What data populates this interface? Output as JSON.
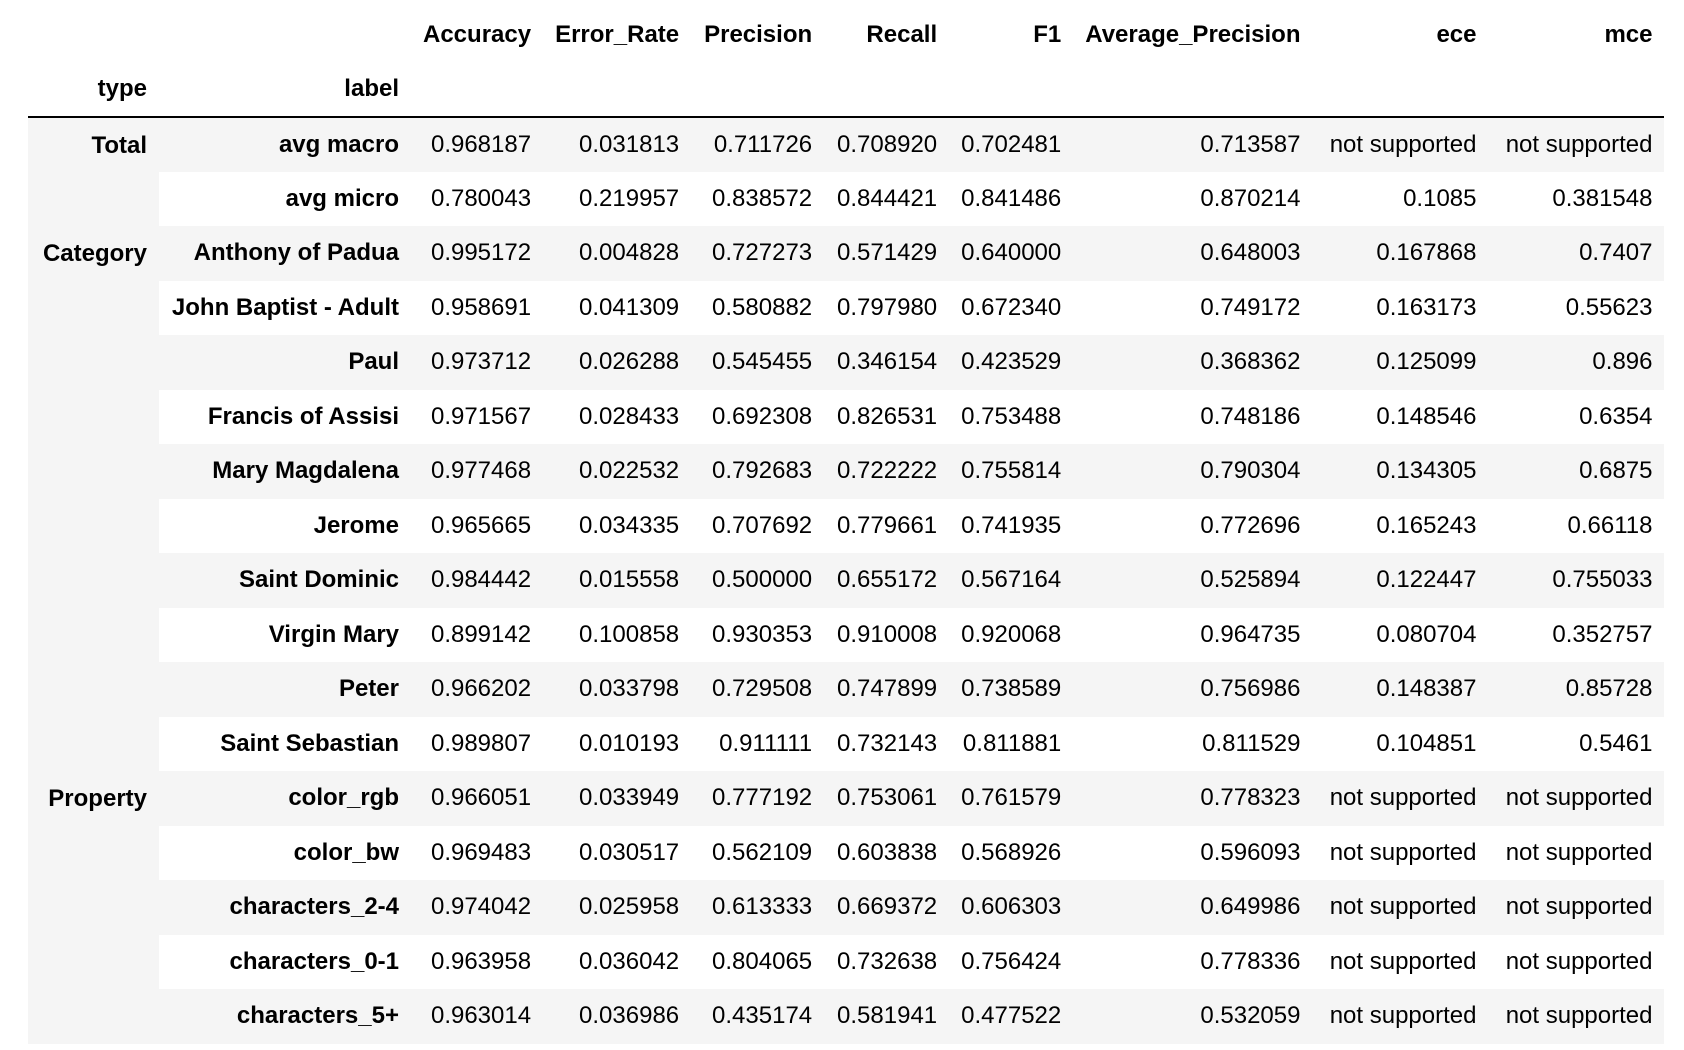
{
  "columns": [
    "Accuracy",
    "Error_Rate",
    "Precision",
    "Recall",
    "F1",
    "Average_Precision",
    "ece",
    "mce"
  ],
  "index_names": {
    "type": "type",
    "label": "label"
  },
  "groups": [
    {
      "type": "Total",
      "rows": [
        {
          "label": "avg macro",
          "values": [
            "0.968187",
            "0.031813",
            "0.711726",
            "0.708920",
            "0.702481",
            "0.713587",
            "not supported",
            "not supported"
          ]
        },
        {
          "label": "avg micro",
          "values": [
            "0.780043",
            "0.219957",
            "0.838572",
            "0.844421",
            "0.841486",
            "0.870214",
            "0.1085",
            "0.381548"
          ]
        }
      ]
    },
    {
      "type": "Category",
      "rows": [
        {
          "label": "Anthony of Padua",
          "values": [
            "0.995172",
            "0.004828",
            "0.727273",
            "0.571429",
            "0.640000",
            "0.648003",
            "0.167868",
            "0.7407"
          ]
        },
        {
          "label": "John Baptist - Adult",
          "values": [
            "0.958691",
            "0.041309",
            "0.580882",
            "0.797980",
            "0.672340",
            "0.749172",
            "0.163173",
            "0.55623"
          ]
        },
        {
          "label": "Paul",
          "values": [
            "0.973712",
            "0.026288",
            "0.545455",
            "0.346154",
            "0.423529",
            "0.368362",
            "0.125099",
            "0.896"
          ]
        },
        {
          "label": "Francis of Assisi",
          "values": [
            "0.971567",
            "0.028433",
            "0.692308",
            "0.826531",
            "0.753488",
            "0.748186",
            "0.148546",
            "0.6354"
          ]
        },
        {
          "label": "Mary Magdalena",
          "values": [
            "0.977468",
            "0.022532",
            "0.792683",
            "0.722222",
            "0.755814",
            "0.790304",
            "0.134305",
            "0.6875"
          ]
        },
        {
          "label": "Jerome",
          "values": [
            "0.965665",
            "0.034335",
            "0.707692",
            "0.779661",
            "0.741935",
            "0.772696",
            "0.165243",
            "0.66118"
          ]
        },
        {
          "label": "Saint Dominic",
          "values": [
            "0.984442",
            "0.015558",
            "0.500000",
            "0.655172",
            "0.567164",
            "0.525894",
            "0.122447",
            "0.755033"
          ]
        },
        {
          "label": "Virgin Mary",
          "values": [
            "0.899142",
            "0.100858",
            "0.930353",
            "0.910008",
            "0.920068",
            "0.964735",
            "0.080704",
            "0.352757"
          ]
        },
        {
          "label": "Peter",
          "values": [
            "0.966202",
            "0.033798",
            "0.729508",
            "0.747899",
            "0.738589",
            "0.756986",
            "0.148387",
            "0.85728"
          ]
        },
        {
          "label": "Saint Sebastian",
          "values": [
            "0.989807",
            "0.010193",
            "0.911111",
            "0.732143",
            "0.811881",
            "0.811529",
            "0.104851",
            "0.5461"
          ]
        }
      ]
    },
    {
      "type": "Property",
      "rows": [
        {
          "label": "color_rgb",
          "values": [
            "0.966051",
            "0.033949",
            "0.777192",
            "0.753061",
            "0.761579",
            "0.778323",
            "not supported",
            "not supported"
          ]
        },
        {
          "label": "color_bw",
          "values": [
            "0.969483",
            "0.030517",
            "0.562109",
            "0.603838",
            "0.568926",
            "0.596093",
            "not supported",
            "not supported"
          ]
        },
        {
          "label": "characters_2-4",
          "values": [
            "0.974042",
            "0.025958",
            "0.613333",
            "0.669372",
            "0.606303",
            "0.649986",
            "not supported",
            "not supported"
          ]
        },
        {
          "label": "characters_0-1",
          "values": [
            "0.963958",
            "0.036042",
            "0.804065",
            "0.732638",
            "0.756424",
            "0.778336",
            "not supported",
            "not supported"
          ]
        },
        {
          "label": "characters_5+",
          "values": [
            "0.963014",
            "0.036986",
            "0.435174",
            "0.581941",
            "0.477522",
            "0.532059",
            "not supported",
            "not supported"
          ]
        }
      ]
    }
  ]
}
